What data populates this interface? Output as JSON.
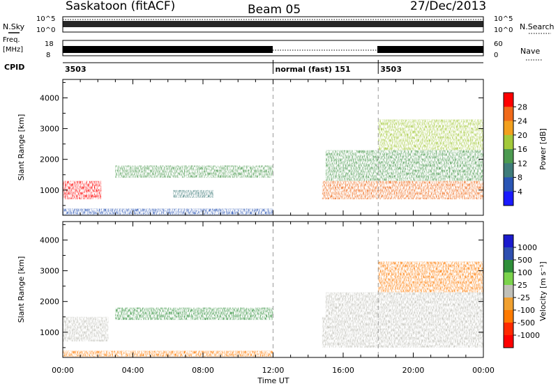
{
  "header": {
    "radar": "Saskatoon (fitACF)",
    "beam": "Beam 05",
    "date": "27/Dec/2013"
  },
  "panels": {
    "nsky_label": "N.Sky",
    "nsearch_label": "N.Search",
    "noise_ticks_left": [
      "10^5",
      "10^0"
    ],
    "noise_ticks_right": [
      "10^5",
      "10^0"
    ],
    "freq_label_1": "Freq.",
    "freq_label_2": "[MHz]",
    "freq_ticks": [
      "18",
      "8"
    ],
    "nave_label": "Nave",
    "nave_ticks": [
      "60",
      "0"
    ],
    "cpid_label": "CPID",
    "cpid_entries": [
      {
        "start": 0,
        "text": "3503"
      },
      {
        "start": 12,
        "text": "normal (fast) 151"
      },
      {
        "start": 18,
        "text": "3503"
      }
    ]
  },
  "chart_data": [
    {
      "type": "heatmap",
      "title": "",
      "xlabel": "",
      "ylabel": "Slant Range [km]",
      "xlim": [
        0,
        24
      ],
      "ylim": [
        180,
        4600
      ],
      "x_ticks": [
        0,
        4,
        8,
        12,
        16,
        20,
        24
      ],
      "y_ticks": [
        1000,
        2000,
        3000,
        4000
      ],
      "y_tick_labels": [
        "1000",
        "2000",
        "3000",
        "4000"
      ],
      "colorbar": {
        "label": "Power [dB]",
        "range": [
          0,
          32
        ],
        "tick_labels": [
          "4",
          "8",
          "12",
          "16",
          "20",
          "24",
          "28"
        ]
      },
      "vlines_ut": [
        12,
        18
      ],
      "regions": [
        {
          "ut": [
            0.0,
            2.2
          ],
          "range_km": [
            700,
            1300
          ],
          "power_db": 28
        },
        {
          "ut": [
            3.0,
            12.0
          ],
          "range_km": [
            1400,
            1800
          ],
          "power_db": 14
        },
        {
          "ut": [
            6.3,
            8.6
          ],
          "range_km": [
            750,
            1000
          ],
          "power_db": 8
        },
        {
          "ut": [
            0.0,
            12.0
          ],
          "range_km": [
            200,
            400
          ],
          "power_db": 6
        },
        {
          "ut": [
            14.8,
            24.0
          ],
          "range_km": [
            700,
            1300
          ],
          "power_db": 26
        },
        {
          "ut": [
            15.0,
            24.0
          ],
          "range_km": [
            1300,
            2300
          ],
          "power_db": 14
        },
        {
          "ut": [
            18.0,
            24.0
          ],
          "range_km": [
            2300,
            3300
          ],
          "power_db": 18
        }
      ]
    },
    {
      "type": "heatmap",
      "title": "",
      "xlabel": "Time UT",
      "ylabel": "Slant Range [km]",
      "xlim": [
        0,
        24
      ],
      "ylim": [
        180,
        4600
      ],
      "x_ticks": [
        0,
        4,
        8,
        12,
        16,
        20,
        24
      ],
      "x_tick_labels": [
        "00:00",
        "04:00",
        "08:00",
        "12:00",
        "16:00",
        "20:00",
        "00:00"
      ],
      "y_ticks": [
        1000,
        2000,
        3000,
        4000
      ],
      "y_tick_labels": [
        "1000",
        "2000",
        "3000",
        "4000"
      ],
      "colorbar": {
        "label": "Velocity [m s⁻¹]",
        "tick_labels": [
          "1000",
          "500",
          "100",
          "25",
          "-25",
          "-100",
          "-500",
          "-1000"
        ]
      },
      "vlines_ut": [
        12,
        18
      ],
      "regions": [
        {
          "ut": [
            0.0,
            2.6
          ],
          "range_km": [
            700,
            1500
          ],
          "velocity_ms": 0
        },
        {
          "ut": [
            3.0,
            12.0
          ],
          "range_km": [
            1400,
            1800
          ],
          "velocity_ms": 150
        },
        {
          "ut": [
            0.0,
            12.0
          ],
          "range_km": [
            200,
            400
          ],
          "velocity_ms": -150
        },
        {
          "ut": [
            14.8,
            24.0
          ],
          "range_km": [
            500,
            1500
          ],
          "velocity_ms": 0
        },
        {
          "ut": [
            15.0,
            24.0
          ],
          "range_km": [
            1500,
            2300
          ],
          "velocity_ms": 0
        },
        {
          "ut": [
            18.0,
            24.0
          ],
          "range_km": [
            2300,
            3300
          ],
          "velocity_ms": -200
        }
      ]
    }
  ],
  "colors": {
    "power_scale": [
      "#1a1aff",
      "#2a55b4",
      "#3f7c7a",
      "#4c9a50",
      "#a3c93a",
      "#f2a01e",
      "#f06a1a",
      "#ff0000"
    ],
    "velocity_scale": [
      "#1a1acd",
      "#2e4fb0",
      "#2f8f3a",
      "#7bd34c",
      "#c0c0b8",
      "#f0a030",
      "#ff7a00",
      "#ff2a00",
      "#ff0000"
    ]
  }
}
